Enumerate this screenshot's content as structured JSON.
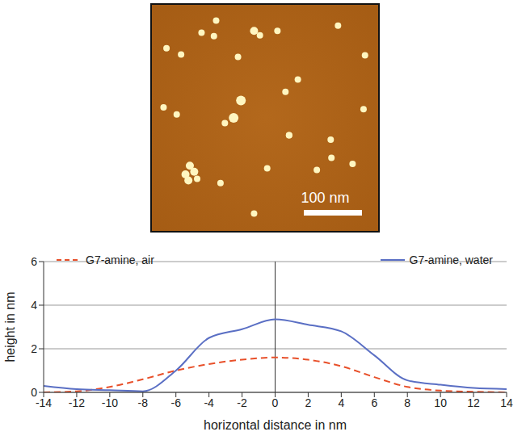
{
  "scale_bar_label": "100 nm",
  "chart_data": {
    "type": "line",
    "x_label": "horizontal distance in nm",
    "y_label": "height in nm",
    "x": [
      -14,
      -12,
      -10,
      -8,
      -6,
      -4,
      -2,
      0,
      2,
      4,
      6,
      8,
      10,
      12,
      14
    ],
    "series": [
      {
        "name": "G7-amine, air",
        "color": "#e8502a",
        "line_style": "dashed",
        "values": [
          0,
          0.05,
          0.25,
          0.6,
          1.0,
          1.3,
          1.5,
          1.6,
          1.5,
          1.2,
          0.7,
          0.25,
          0.08,
          0.03,
          0
        ]
      },
      {
        "name": "G7-amine, water",
        "color": "#5a6fc4",
        "line_style": "solid",
        "values": [
          0.3,
          0.15,
          0.1,
          0.05,
          1.0,
          2.5,
          2.9,
          3.35,
          3.1,
          2.8,
          1.7,
          0.55,
          0.35,
          0.2,
          0.15
        ]
      }
    ],
    "xlim": [
      -14,
      14
    ],
    "xticks": [
      -14,
      -12,
      -10,
      -8,
      -6,
      -4,
      -2,
      0,
      2,
      4,
      6,
      8,
      10,
      12,
      14
    ],
    "ylim": [
      0,
      6
    ],
    "yticks": [
      0,
      2,
      4,
      6
    ],
    "grid": true,
    "legend": "top"
  }
}
